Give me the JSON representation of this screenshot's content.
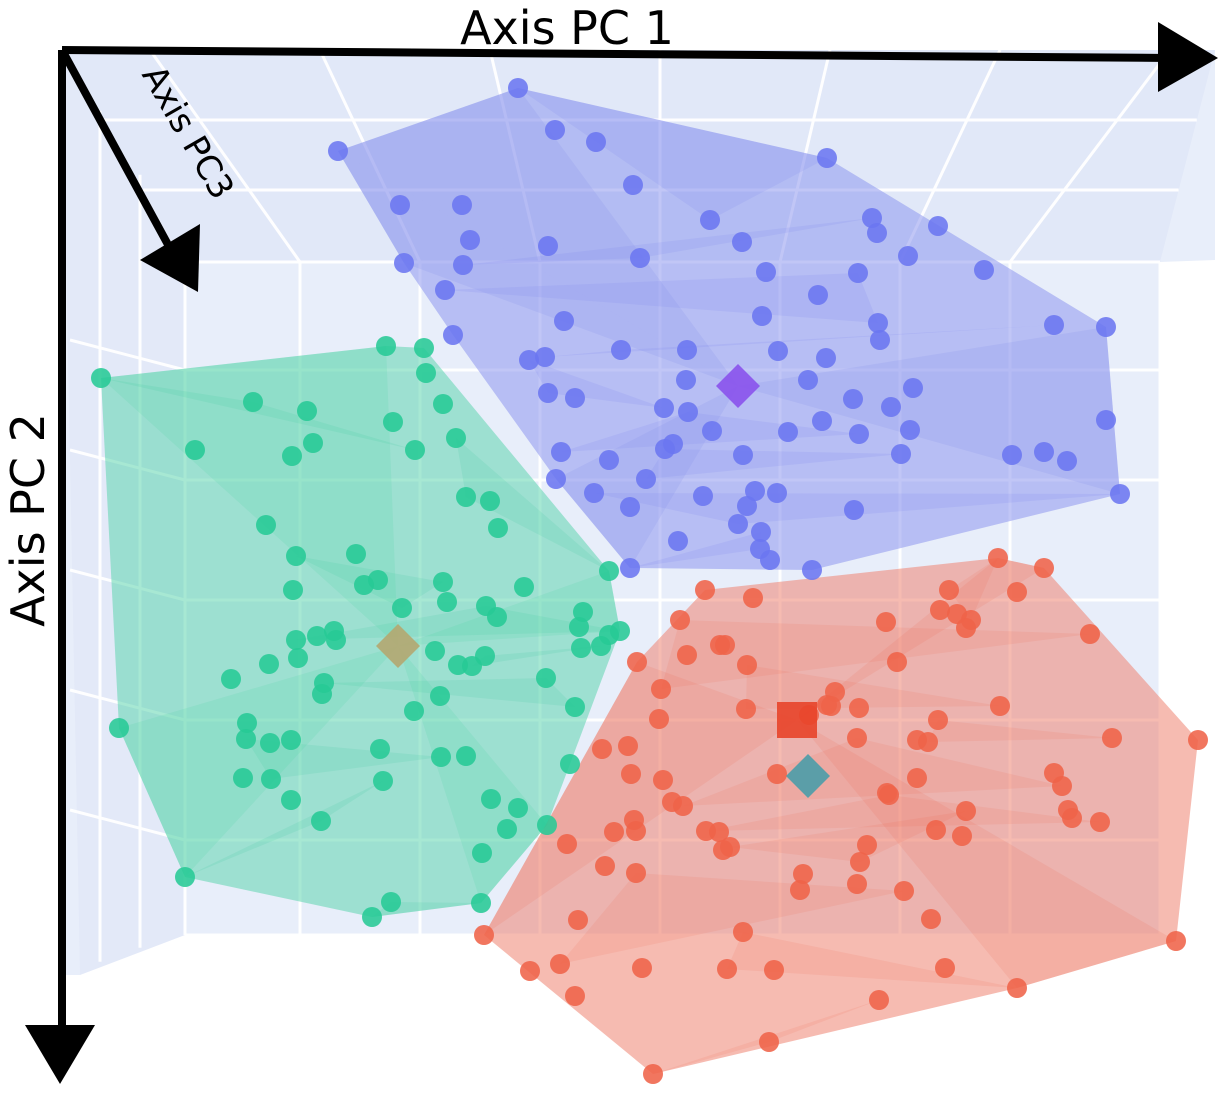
{
  "chart_data": {
    "type": "scatter",
    "axes": {
      "x": {
        "label": "Axis PC 1"
      },
      "y": {
        "label": "Axis PC 2"
      },
      "z": {
        "label": "Axis PC3"
      }
    },
    "grid": true,
    "legend": "none",
    "colors": {
      "pane": "#e8eefa",
      "grid": "#ffffff",
      "axis": "#000000"
    },
    "series": [
      {
        "color": "#6b76f0",
        "hull_color": "#8e98ee",
        "points": [
          [
            518,
            88
          ],
          [
            555,
            130
          ],
          [
            596,
            142
          ],
          [
            338,
            151
          ],
          [
            827,
            158
          ],
          [
            633,
            185
          ],
          [
            400,
            205
          ],
          [
            462,
            205
          ],
          [
            710,
            220
          ],
          [
            872,
            218
          ],
          [
            938,
            226
          ],
          [
            877,
            233
          ],
          [
            470,
            240
          ],
          [
            640,
            258
          ],
          [
            742,
            242
          ],
          [
            548,
            246
          ],
          [
            404,
            263
          ],
          [
            463,
            265
          ],
          [
            858,
            273
          ],
          [
            766,
            272
          ],
          [
            908,
            256
          ],
          [
            984,
            270
          ],
          [
            445,
            290
          ],
          [
            818,
            295
          ],
          [
            564,
            321
          ],
          [
            762,
            316
          ],
          [
            878,
            323
          ],
          [
            1054,
            325
          ],
          [
            1106,
            327
          ],
          [
            453,
            335
          ],
          [
            880,
            340
          ],
          [
            621,
            350
          ],
          [
            687,
            350
          ],
          [
            778,
            351
          ],
          [
            826,
            358
          ],
          [
            545,
            357
          ],
          [
            529,
            360
          ],
          [
            686,
            380
          ],
          [
            808,
            380
          ],
          [
            913,
            388
          ],
          [
            548,
            393
          ],
          [
            575,
            398
          ],
          [
            853,
            399
          ],
          [
            891,
            407
          ],
          [
            664,
            408
          ],
          [
            688,
            412
          ],
          [
            822,
            421
          ],
          [
            712,
            431
          ],
          [
            910,
            430
          ],
          [
            859,
            434
          ],
          [
            788,
            432
          ],
          [
            1106,
            420
          ],
          [
            673,
            444
          ],
          [
            561,
            452
          ],
          [
            665,
            449
          ],
          [
            609,
            460
          ],
          [
            743,
            455
          ],
          [
            1012,
            455
          ],
          [
            901,
            454
          ],
          [
            1044,
            452
          ],
          [
            1067,
            461
          ],
          [
            556,
            479
          ],
          [
            646,
            479
          ],
          [
            594,
            493
          ],
          [
            703,
            496
          ],
          [
            755,
            491
          ],
          [
            777,
            493
          ],
          [
            1120,
            494
          ],
          [
            747,
            506
          ],
          [
            854,
            510
          ],
          [
            630,
            507
          ],
          [
            738,
            524
          ],
          [
            761,
            532
          ],
          [
            678,
            541
          ],
          [
            760,
            549
          ],
          [
            770,
            560
          ],
          [
            630,
            568
          ],
          [
            812,
            570
          ]
        ],
        "centroid": [
          738,
          386
        ]
      },
      {
        "color": "#27c995",
        "hull_color": "#5fd6af",
        "points": [
          [
            101,
            378
          ],
          [
            386,
            346
          ],
          [
            424,
            348
          ],
          [
            426,
            373
          ],
          [
            253,
            402
          ],
          [
            307,
            411
          ],
          [
            393,
            422
          ],
          [
            443,
            404
          ],
          [
            415,
            450
          ],
          [
            456,
            438
          ],
          [
            195,
            450
          ],
          [
            292,
            456
          ],
          [
            313,
            443
          ],
          [
            466,
            497
          ],
          [
            490,
            501
          ],
          [
            498,
            528
          ],
          [
            266,
            525
          ],
          [
            609,
            571
          ],
          [
            296,
            556
          ],
          [
            356,
            554
          ],
          [
            378,
            580
          ],
          [
            364,
            585
          ],
          [
            443,
            582
          ],
          [
            524,
            587
          ],
          [
            293,
            590
          ],
          [
            447,
            602
          ],
          [
            402,
            608
          ],
          [
            486,
            606
          ],
          [
            497,
            617
          ],
          [
            583,
            612
          ],
          [
            317,
            636
          ],
          [
            296,
            640
          ],
          [
            334,
            631
          ],
          [
            336,
            640
          ],
          [
            579,
            627
          ],
          [
            620,
            631
          ],
          [
            601,
            646
          ],
          [
            298,
            658
          ],
          [
            269,
            664
          ],
          [
            435,
            651
          ],
          [
            485,
            656
          ],
          [
            581,
            648
          ],
          [
            609,
            635
          ],
          [
            458,
            665
          ],
          [
            472,
            666
          ],
          [
            324,
            683
          ],
          [
            322,
            694
          ],
          [
            231,
            679
          ],
          [
            440,
            696
          ],
          [
            546,
            678
          ],
          [
            119,
            728
          ],
          [
            247,
            723
          ],
          [
            414,
            711
          ],
          [
            575,
            707
          ],
          [
            246,
            739
          ],
          [
            291,
            740
          ],
          [
            270,
            743
          ],
          [
            380,
            749
          ],
          [
            441,
            757
          ],
          [
            466,
            756
          ],
          [
            570,
            764
          ],
          [
            243,
            778
          ],
          [
            271,
            779
          ],
          [
            383,
            781
          ],
          [
            491,
            799
          ],
          [
            291,
            800
          ],
          [
            518,
            808
          ],
          [
            321,
            821
          ],
          [
            547,
            825
          ],
          [
            507,
            829
          ],
          [
            482,
            853
          ],
          [
            185,
            877
          ],
          [
            391,
            902
          ],
          [
            481,
            903
          ],
          [
            372,
            917
          ]
        ],
        "centroid": [
          398,
          646
        ]
      },
      {
        "color": "#ef6349",
        "hull_color": "#ee8471",
        "points": [
          [
            998,
            558
          ],
          [
            1044,
            568
          ],
          [
            705,
            590
          ],
          [
            753,
            598
          ],
          [
            949,
            590
          ],
          [
            1017,
            592
          ],
          [
            940,
            610
          ],
          [
            957,
            614
          ],
          [
            971,
            620
          ],
          [
            680,
            620
          ],
          [
            720,
            645
          ],
          [
            886,
            622
          ],
          [
            966,
            628
          ],
          [
            1090,
            634
          ],
          [
            637,
            662
          ],
          [
            725,
            645
          ],
          [
            687,
            655
          ],
          [
            661,
            689
          ],
          [
            747,
            665
          ],
          [
            835,
            692
          ],
          [
            897,
            662
          ],
          [
            827,
            705
          ],
          [
            746,
            709
          ],
          [
            809,
            715
          ],
          [
            831,
            706
          ],
          [
            859,
            708
          ],
          [
            1000,
            706
          ],
          [
            938,
            720
          ],
          [
            659,
            719
          ],
          [
            602,
            749
          ],
          [
            628,
            746
          ],
          [
            1112,
            738
          ],
          [
            1198,
            740
          ],
          [
            631,
            774
          ],
          [
            917,
            740
          ],
          [
            928,
            742
          ],
          [
            857,
            738
          ],
          [
            777,
            774
          ],
          [
            1054,
            773
          ],
          [
            917,
            778
          ],
          [
            1062,
            786
          ],
          [
            663,
            780
          ],
          [
            672,
            802
          ],
          [
            887,
            793
          ],
          [
            683,
            806
          ],
          [
            889,
            795
          ],
          [
            614,
            832
          ],
          [
            634,
            820
          ],
          [
            636,
            831
          ],
          [
            706,
            831
          ],
          [
            719,
            832
          ],
          [
            1068,
            810
          ],
          [
            1072,
            818
          ],
          [
            1100,
            822
          ],
          [
            966,
            811
          ],
          [
            936,
            830
          ],
          [
            567,
            844
          ],
          [
            605,
            866
          ],
          [
            730,
            847
          ],
          [
            723,
            850
          ],
          [
            867,
            845
          ],
          [
            962,
            836
          ],
          [
            860,
            862
          ],
          [
            636,
            873
          ],
          [
            803,
            874
          ],
          [
            800,
            890
          ],
          [
            857,
            884
          ],
          [
            904,
            891
          ],
          [
            578,
            920
          ],
          [
            931,
            919
          ],
          [
            484,
            935
          ],
          [
            560,
            964
          ],
          [
            743,
            932
          ],
          [
            1176,
            941
          ],
          [
            530,
            971
          ],
          [
            642,
            968
          ],
          [
            727,
            969
          ],
          [
            774,
            970
          ],
          [
            945,
            968
          ],
          [
            575,
            996
          ],
          [
            1017,
            988
          ],
          [
            879,
            1000
          ],
          [
            769,
            1042
          ],
          [
            653,
            1074
          ]
        ],
        "extra_markers": [
          {
            "shape": "square",
            "x": 797,
            "y": 720,
            "color": "#e8442a"
          },
          {
            "shape": "diamond",
            "x": 808,
            "y": 776,
            "color": "#4b9ca8"
          }
        ],
        "centroid": [
          797,
          720
        ]
      }
    ]
  }
}
